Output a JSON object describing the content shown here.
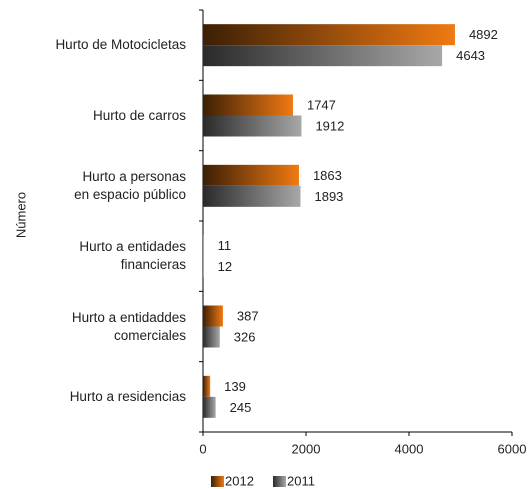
{
  "chart_data": {
    "type": "bar",
    "orientation": "horizontal",
    "y_axis_label": "Número",
    "categories": [
      "Hurto de Motocicletas",
      "Hurto de carros",
      "Hurto a personas\nen espacio público",
      "Hurto a entidades\nfinancieras",
      "Hurto a entidaddes\ncomerciales",
      "Hurto a residencias"
    ],
    "series": [
      {
        "name": "2012",
        "color": "#f07a12",
        "values": [
          4892,
          1747,
          1863,
          11,
          387,
          139
        ]
      },
      {
        "name": "2011",
        "color": "#a8a8a8",
        "values": [
          4643,
          1912,
          1893,
          12,
          326,
          245
        ]
      }
    ],
    "xlim": [
      0,
      6000
    ],
    "xticks": [
      0,
      2000,
      4000,
      6000
    ],
    "legend": "bottom"
  }
}
